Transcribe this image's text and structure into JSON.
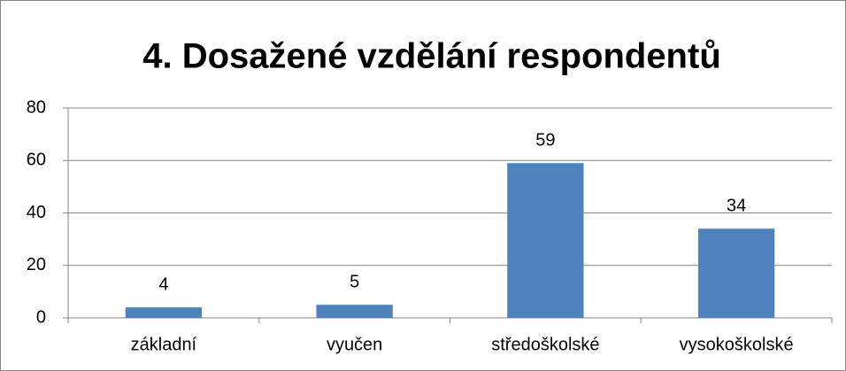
{
  "chart_data": {
    "type": "bar",
    "title": "4. Dosažené vzdělání respondentů",
    "categories": [
      "základní",
      "vyučen",
      "středoškolské",
      "vysokoškolské"
    ],
    "values": [
      4,
      5,
      59,
      34
    ],
    "color": "#4f81bd",
    "ylim": [
      0,
      80
    ],
    "yticks": [
      0,
      20,
      40,
      60,
      80
    ],
    "grid": true,
    "data_labels": true
  }
}
